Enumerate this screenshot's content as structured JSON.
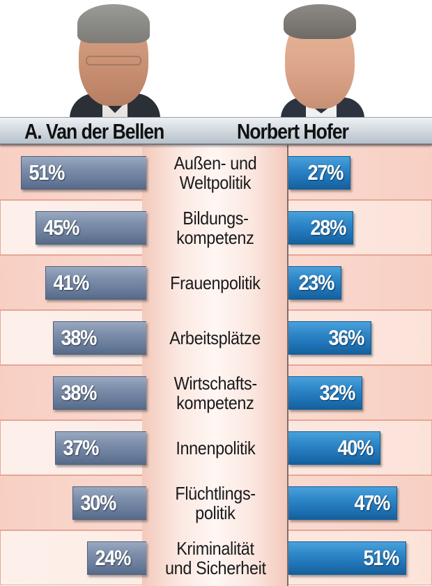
{
  "header": {
    "candidate_left": "A. Van der Bellen",
    "candidate_right": "Norbert Hofer"
  },
  "colors": {
    "left_bar": "#6a7d9c",
    "right_bar": "#1f73b6",
    "row_odd": "#f9d8ce",
    "row_even": "#fdebe4",
    "header_bg": "#cfd6dd"
  },
  "rows": [
    {
      "topic_line1": "Außen- und",
      "topic_line2": "Weltpolitik",
      "left_label": "51%",
      "right_label": "27%"
    },
    {
      "topic_line1": "Bildungs-",
      "topic_line2": "kompetenz",
      "left_label": "45%",
      "right_label": "28%"
    },
    {
      "topic_line1": "Frauenpolitik",
      "topic_line2": "",
      "left_label": "41%",
      "right_label": "23%"
    },
    {
      "topic_line1": "Arbeitsplätze",
      "topic_line2": "",
      "left_label": "38%",
      "right_label": "36%"
    },
    {
      "topic_line1": "Wirtschafts-",
      "topic_line2": "kompetenz",
      "left_label": "38%",
      "right_label": "32%"
    },
    {
      "topic_line1": "Innenpolitik",
      "topic_line2": "",
      "left_label": "37%",
      "right_label": "40%"
    },
    {
      "topic_line1": "Flüchtlings-",
      "topic_line2": "politik",
      "left_label": "30%",
      "right_label": "47%"
    },
    {
      "topic_line1": "Kriminalität",
      "topic_line2": "und Sicherheit",
      "left_label": "24%",
      "right_label": "51%"
    }
  ],
  "chart_data": {
    "type": "bar",
    "orientation": "horizontal-diverging",
    "title": "",
    "categories": [
      "Außen- und Weltpolitik",
      "Bildungskompetenz",
      "Frauenpolitik",
      "Arbeitsplätze",
      "Wirtschaftskompetenz",
      "Innenpolitik",
      "Flüchtlingspolitik",
      "Kriminalität und Sicherheit"
    ],
    "series": [
      {
        "name": "A. Van der Bellen",
        "values": [
          51,
          45,
          41,
          38,
          38,
          37,
          30,
          24
        ],
        "color": "#6a7d9c",
        "side": "left"
      },
      {
        "name": "Norbert Hofer",
        "values": [
          27,
          28,
          23,
          36,
          32,
          40,
          47,
          51
        ],
        "color": "#1f73b6",
        "side": "right"
      }
    ],
    "unit": "%",
    "xlabel": "",
    "ylabel": "",
    "grid": false,
    "legend": "header names above columns with candidate photos"
  }
}
